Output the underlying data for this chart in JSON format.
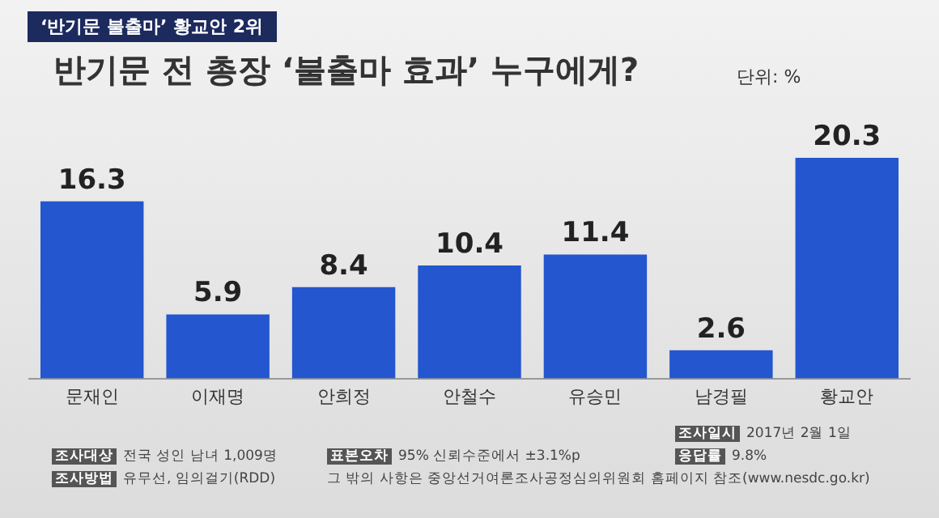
{
  "chart_data": {
    "type": "bar",
    "title": "반기문 전 총장 ‘불출마 효과’ 누구에게?",
    "subtitle": "‘반기문 불출마’ 황교안 2위",
    "ylabel": "단위: %",
    "categories": [
      "문재인",
      "이재명",
      "안희정",
      "안철수",
      "유승민",
      "남경필",
      "황교안"
    ],
    "values": [
      16.3,
      5.9,
      8.4,
      10.4,
      11.4,
      2.6,
      20.3
    ],
    "color": "#2356cf",
    "data_labels": true,
    "grid": false,
    "legend": false,
    "annotations": [
      "조사일시",
      "2017년 2월 1일",
      "조사대상",
      "전국 성인 남녀 1,009명",
      "표본오차",
      "95% 신뢰수준에서 ±3.1%p",
      "응답률",
      "9.8%",
      "조사방법",
      "유무선, 임의걸기(RDD)",
      {
        "text": "그 밖의 사항은 중앙선거여론조사공정심의위원회 홈페이지 참조(www.nesdc.go.kr)"
      }
    ]
  }
}
